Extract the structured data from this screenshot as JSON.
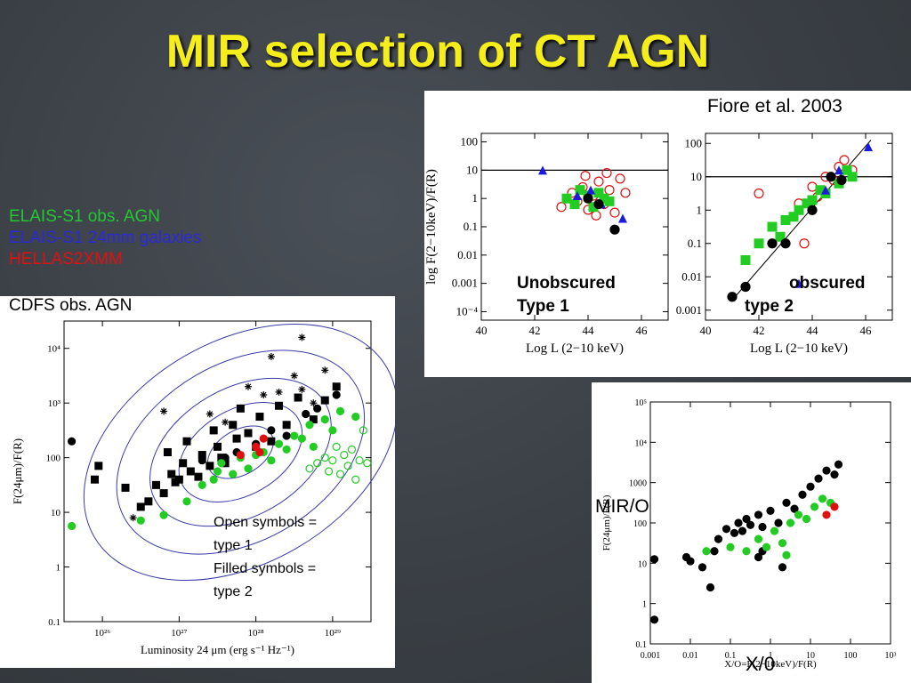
{
  "slide": {
    "title": "MIR selection of CT AGN",
    "legend": [
      {
        "text": "ELAIS-S1 obs.  AGN",
        "color": "#22c832"
      },
      {
        "text": "ELAIS-S1 24mm galaxies",
        "color": "#2a2ad8"
      },
      {
        "text": "HELLAS2XMM",
        "color": "#e01010"
      },
      {
        "text": "CDFS obs. AGN",
        "color": "#000000"
      }
    ],
    "citation": "Fiore et al. 2003",
    "annotations": {
      "unobscured": [
        "Unobscured",
        "Type 1"
      ],
      "obscured": [
        "obscured",
        "type 2"
      ],
      "symbols_note": [
        "Open symbols =",
        "type 1",
        "Filled symbols =",
        "type 2"
      ],
      "mir_o": "MIR/O",
      "x_o": "X/0"
    }
  },
  "chart_data": [
    {
      "type": "scatter",
      "panel": "left",
      "xlabel": "Luminosity 24 μm (erg s⁻¹ Hz⁻¹)",
      "ylabel": "F(24μm)/F(R)",
      "x_log_range": [
        25.5,
        29.5
      ],
      "y_log_range": [
        -1,
        4.5
      ],
      "x_ticks": [
        "10²⁶",
        "10²⁷",
        "10²⁸",
        "10²⁹"
      ],
      "y_ticks": [
        "10⁴",
        "10³",
        "100",
        "10",
        "1",
        "0.1"
      ],
      "series": [
        {
          "kind": "black-filled-square",
          "points": [
            [
              25.9,
              1.6
            ],
            [
              25.95,
              1.85
            ],
            [
              26.3,
              1.45
            ],
            [
              26.5,
              1.1
            ],
            [
              26.6,
              1.2
            ],
            [
              26.7,
              1.5
            ],
            [
              26.8,
              1.35
            ],
            [
              26.85,
              2.1
            ],
            [
              26.9,
              1.7
            ],
            [
              26.95,
              1.55
            ],
            [
              27.0,
              1.6
            ],
            [
              27.05,
              1.9
            ],
            [
              27.1,
              2.3
            ],
            [
              27.15,
              1.75
            ],
            [
              27.25,
              1.65
            ],
            [
              27.3,
              2.05
            ],
            [
              27.4,
              1.85
            ],
            [
              27.45,
              2.5
            ],
            [
              27.5,
              2.2
            ],
            [
              27.55,
              2.0
            ],
            [
              27.6,
              1.9
            ],
            [
              27.7,
              2.6
            ],
            [
              27.75,
              2.35
            ],
            [
              27.8,
              2.9
            ],
            [
              27.9,
              2.45
            ],
            [
              28.0,
              2.2
            ],
            [
              28.05,
              2.75
            ],
            [
              28.2,
              2.3
            ],
            [
              28.3,
              2.95
            ],
            [
              28.4,
              2.6
            ],
            [
              28.55,
              3.1
            ],
            [
              28.75,
              2.7
            ],
            [
              28.9,
              3.05
            ],
            [
              29.05,
              3.3
            ]
          ]
        },
        {
          "kind": "black-filled-circle",
          "points": [
            [
              25.6,
              2.3
            ],
            [
              27.3,
              1.95
            ],
            [
              27.6,
              2.0
            ],
            [
              27.75,
              2.1
            ],
            [
              28.0,
              2.25
            ],
            [
              28.2,
              2.5
            ],
            [
              28.4,
              2.4
            ],
            [
              28.65,
              2.8
            ],
            [
              28.8,
              2.9
            ],
            [
              29.05,
              3.15
            ]
          ]
        },
        {
          "kind": "green-filled-circle",
          "points": [
            [
              25.6,
              0.75
            ],
            [
              26.5,
              0.85
            ],
            [
              26.8,
              0.95
            ],
            [
              27.1,
              1.2
            ],
            [
              27.3,
              1.5
            ],
            [
              27.45,
              1.6
            ],
            [
              27.5,
              1.75
            ],
            [
              27.55,
              1.9
            ],
            [
              27.7,
              1.7
            ],
            [
              27.8,
              2.0
            ],
            [
              27.9,
              1.8
            ],
            [
              28.0,
              2.05
            ],
            [
              28.1,
              2.1
            ],
            [
              28.2,
              1.95
            ],
            [
              28.3,
              2.25
            ],
            [
              28.4,
              2.15
            ],
            [
              28.5,
              2.4
            ],
            [
              28.6,
              2.35
            ],
            [
              28.7,
              2.6
            ],
            [
              28.75,
              2.2
            ],
            [
              28.9,
              2.7
            ],
            [
              29.0,
              2.5
            ],
            [
              29.1,
              2.85
            ],
            [
              29.3,
              2.75
            ]
          ]
        },
        {
          "kind": "green-open-circle",
          "points": [
            [
              28.7,
              1.8
            ],
            [
              28.8,
              1.9
            ],
            [
              28.9,
              2.0
            ],
            [
              28.95,
              1.75
            ],
            [
              29.0,
              1.95
            ],
            [
              29.05,
              2.2
            ],
            [
              29.1,
              1.7
            ],
            [
              29.15,
              2.05
            ],
            [
              29.2,
              1.85
            ],
            [
              29.25,
              2.15
            ],
            [
              29.3,
              1.6
            ],
            [
              29.35,
              1.95
            ],
            [
              29.4,
              2.5
            ],
            [
              29.45,
              1.9
            ]
          ]
        },
        {
          "kind": "red-filled-circle",
          "points": [
            [
              27.8,
              2.05
            ],
            [
              28.0,
              2.2
            ],
            [
              28.1,
              2.35
            ],
            [
              28.05,
              2.1
            ]
          ]
        },
        {
          "kind": "black-asterisk",
          "points": [
            [
              26.8,
              2.85
            ],
            [
              27.4,
              2.8
            ],
            [
              27.6,
              2.65
            ],
            [
              27.9,
              3.3
            ],
            [
              28.1,
              3.15
            ],
            [
              28.3,
              3.2
            ],
            [
              28.5,
              3.5
            ],
            [
              28.6,
              3.25
            ],
            [
              28.75,
              3.0
            ],
            [
              28.9,
              3.6
            ],
            [
              28.2,
              3.85
            ],
            [
              28.6,
              4.2
            ],
            [
              26.4,
              0.9
            ]
          ]
        }
      ]
    },
    {
      "type": "scatter",
      "panel": "top-left",
      "xlabel": "Log L (2−10 keV)",
      "ylabel": "log F(2−10keV)/F(R)",
      "x_range": [
        40,
        47
      ],
      "y_log_range": [
        -4.3,
        2.3
      ],
      "x_ticks": [
        "40",
        "42",
        "44",
        "46"
      ],
      "y_ticks": [
        "100",
        "10",
        "1",
        "0.1",
        "0.01",
        "0.001",
        "10⁻⁴"
      ],
      "reference_line_y": 10,
      "series": [
        {
          "kind": "red-open-circle",
          "points": [
            [
              43.0,
              -0.3
            ],
            [
              43.4,
              0.2
            ],
            [
              43.6,
              -0.1
            ],
            [
              43.8,
              0.4
            ],
            [
              44.0,
              -0.4
            ],
            [
              44.2,
              0.1
            ],
            [
              44.4,
              0.6
            ],
            [
              44.6,
              -0.2
            ],
            [
              44.8,
              0.3
            ],
            [
              45.0,
              -0.5
            ],
            [
              45.2,
              0.7
            ],
            [
              44.3,
              -0.6
            ],
            [
              43.9,
              0.8
            ],
            [
              44.7,
              0.9
            ],
            [
              45.4,
              0.2
            ]
          ]
        },
        {
          "kind": "green-filled-square",
          "points": [
            [
              43.2,
              0.0
            ],
            [
              43.5,
              -0.2
            ],
            [
              43.7,
              0.3
            ],
            [
              44.0,
              0.1
            ],
            [
              44.2,
              -0.3
            ],
            [
              44.4,
              0.2
            ],
            [
              44.6,
              0.0
            ],
            [
              44.8,
              -0.1
            ]
          ]
        },
        {
          "kind": "blue-filled-triangle",
          "points": [
            [
              42.3,
              1.0
            ],
            [
              43.6,
              0.1
            ],
            [
              44.1,
              0.3
            ],
            [
              44.5,
              -0.2
            ],
            [
              45.3,
              -0.7
            ]
          ]
        },
        {
          "kind": "black-filled-circle",
          "points": [
            [
              44.0,
              0.0
            ],
            [
              44.4,
              -0.2
            ],
            [
              45.0,
              -1.1
            ]
          ]
        }
      ]
    },
    {
      "type": "scatter",
      "panel": "top-right",
      "xlabel": "Log L (2−10 keV)",
      "x_range": [
        40,
        47
      ],
      "y_log_range": [
        -3.3,
        2.3
      ],
      "x_ticks": [
        "40",
        "42",
        "44",
        "46"
      ],
      "y_ticks": [
        "100",
        "10",
        "1",
        "0.1",
        "0.01",
        "0.001"
      ],
      "reference_line_y": 10,
      "series": [
        {
          "kind": "red-open-circle",
          "points": [
            [
              42.0,
              0.5
            ],
            [
              43.5,
              0.2
            ],
            [
              44.0,
              0.7
            ],
            [
              44.5,
              1.0
            ],
            [
              45.0,
              1.3
            ],
            [
              45.5,
              1.2
            ],
            [
              43.7,
              -1.0
            ],
            [
              44.2,
              0.4
            ],
            [
              44.8,
              0.9
            ],
            [
              45.2,
              1.5
            ]
          ]
        },
        {
          "kind": "green-filled-square",
          "points": [
            [
              41.5,
              -1.5
            ],
            [
              42.0,
              -1.0
            ],
            [
              42.5,
              -0.5
            ],
            [
              43.0,
              -0.3
            ],
            [
              43.5,
              0.0
            ],
            [
              44.0,
              0.3
            ],
            [
              44.5,
              0.5
            ],
            [
              45.0,
              0.8
            ],
            [
              45.5,
              1.0
            ],
            [
              42.8,
              -0.8
            ],
            [
              43.3,
              -0.2
            ],
            [
              43.8,
              0.2
            ],
            [
              44.3,
              0.6
            ],
            [
              45.3,
              1.2
            ]
          ]
        },
        {
          "kind": "blue-filled-triangle",
          "points": [
            [
              43.5,
              -2.2
            ],
            [
              44.5,
              0.6
            ],
            [
              45.0,
              1.2
            ],
            [
              46.1,
              1.9
            ]
          ]
        },
        {
          "kind": "black-filled-circle",
          "points": [
            [
              41.0,
              -2.6
            ],
            [
              41.5,
              -2.3
            ],
            [
              42.5,
              -1.0
            ],
            [
              43.0,
              -1.0
            ],
            [
              44.0,
              0.0
            ],
            [
              44.7,
              1.0
            ],
            [
              45.1,
              0.9
            ]
          ]
        }
      ]
    },
    {
      "type": "scatter",
      "panel": "bottom-right",
      "xlabel": "X/O=F(2−10keV)/F(R)",
      "ylabel": "F(24μm)/F(R)",
      "x_log_range": [
        -3,
        3
      ],
      "y_log_range": [
        -1,
        5
      ],
      "x_ticks": [
        "0.001",
        "0.01",
        "0.1",
        "1",
        "10",
        "100",
        "10³"
      ],
      "y_ticks": [
        "10⁵",
        "10⁴",
        "1000",
        "100",
        "10",
        "1",
        "0.1"
      ],
      "series": [
        {
          "kind": "black-filled-circle",
          "points": [
            [
              -2.9,
              1.1
            ],
            [
              -2.1,
              1.15
            ],
            [
              -2.0,
              1.05
            ],
            [
              -1.7,
              0.9
            ],
            [
              -1.4,
              1.3
            ],
            [
              -1.3,
              1.6
            ],
            [
              -1.1,
              1.85
            ],
            [
              -0.9,
              1.75
            ],
            [
              -0.8,
              2.0
            ],
            [
              -0.7,
              1.8
            ],
            [
              -0.6,
              2.1
            ],
            [
              -0.5,
              1.95
            ],
            [
              -0.3,
              2.2
            ],
            [
              -0.2,
              1.9
            ],
            [
              0.0,
              2.3
            ],
            [
              0.2,
              2.0
            ],
            [
              0.4,
              2.5
            ],
            [
              0.6,
              2.35
            ],
            [
              0.8,
              2.7
            ],
            [
              1.0,
              2.9
            ],
            [
              1.2,
              3.1
            ],
            [
              1.4,
              3.3
            ],
            [
              1.6,
              3.2
            ],
            [
              1.7,
              3.45
            ],
            [
              -2.9,
              -0.4
            ],
            [
              -1.5,
              0.4
            ],
            [
              -0.2,
              1.3
            ],
            [
              -0.3,
              1.15
            ],
            [
              0.3,
              0.9
            ]
          ]
        },
        {
          "kind": "green-filled-circle",
          "points": [
            [
              -1.6,
              1.3
            ],
            [
              -1.0,
              1.4
            ],
            [
              -0.6,
              1.3
            ],
            [
              -0.3,
              1.6
            ],
            [
              -0.1,
              1.4
            ],
            [
              0.1,
              1.8
            ],
            [
              0.3,
              1.5
            ],
            [
              0.5,
              2.0
            ],
            [
              0.7,
              2.2
            ],
            [
              0.9,
              2.1
            ],
            [
              1.1,
              2.4
            ],
            [
              1.3,
              2.6
            ],
            [
              1.5,
              2.5
            ],
            [
              0.4,
              1.2
            ]
          ]
        },
        {
          "kind": "red-filled-circle",
          "points": [
            [
              1.4,
              2.2
            ],
            [
              1.6,
              2.4
            ]
          ]
        }
      ]
    }
  ]
}
